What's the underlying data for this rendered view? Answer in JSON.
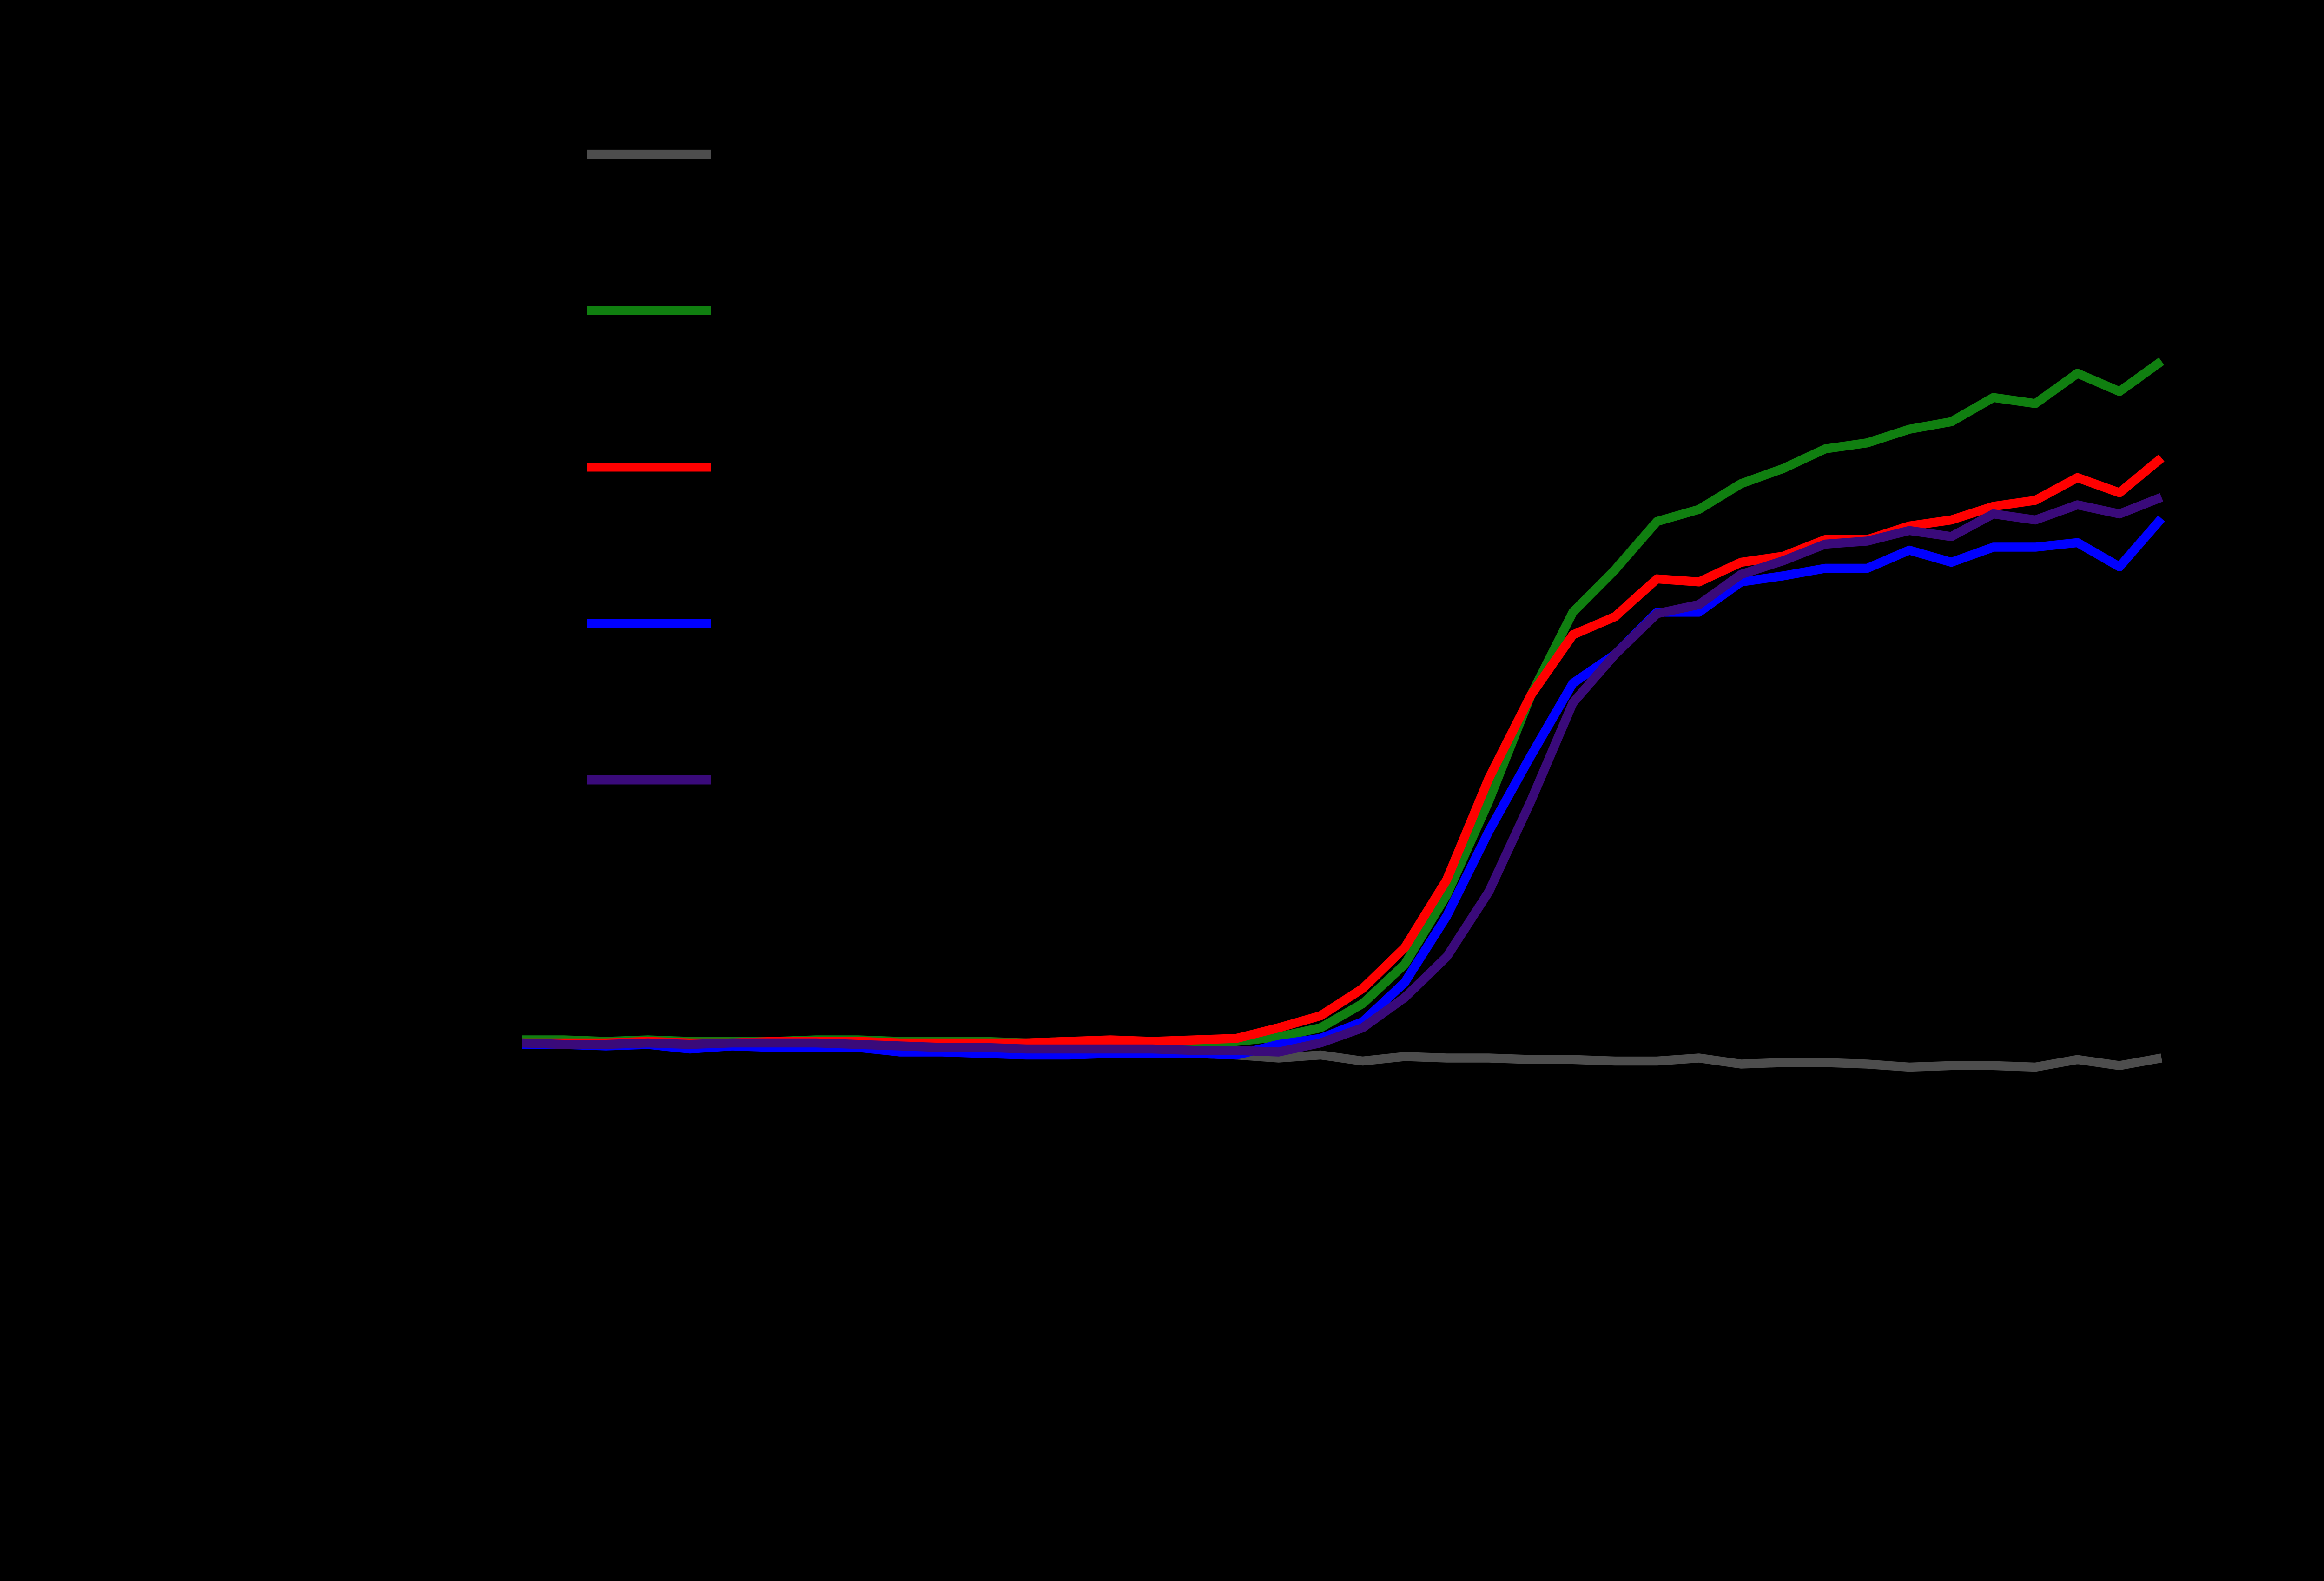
{
  "chart_data": {
    "type": "line",
    "x": [
      1,
      2,
      3,
      4,
      5,
      6,
      7,
      8,
      9,
      10,
      11,
      12,
      13,
      14,
      15,
      16,
      17,
      18,
      19,
      20,
      21,
      22,
      23,
      24,
      25,
      26,
      27,
      28,
      29,
      30,
      31,
      32,
      33,
      34,
      35,
      36,
      37,
      38,
      39,
      40
    ],
    "xlim": [
      1,
      40
    ],
    "ylim": [
      -3,
      6.5
    ],
    "background": "#000000",
    "series": [
      {
        "color": "#4d4d4d",
        "values": [
          0,
          0,
          0,
          0,
          -0.01,
          -0.01,
          -0.02,
          -0.02,
          -0.02,
          -0.03,
          -0.04,
          -0.04,
          -0.05,
          -0.05,
          -0.05,
          -0.06,
          -0.07,
          -0.08,
          -0.1,
          -0.08,
          -0.12,
          -0.09,
          -0.1,
          -0.1,
          -0.11,
          -0.11,
          -0.12,
          -0.12,
          -0.1,
          -0.14,
          -0.13,
          -0.13,
          -0.14,
          -0.16,
          -0.15,
          -0.15,
          -0.16,
          -0.11,
          -0.15,
          -0.1
        ]
      },
      {
        "color": "#107f10",
        "values": [
          0.02,
          0.02,
          0.01,
          0.02,
          0.01,
          0.01,
          0.01,
          0.02,
          0.02,
          0.01,
          0.01,
          0.01,
          0.0,
          0.01,
          0.01,
          0.0,
          0.01,
          0.01,
          0.04,
          0.1,
          0.26,
          0.52,
          0.98,
          1.6,
          2.3,
          2.85,
          3.13,
          3.45,
          3.53,
          3.7,
          3.8,
          3.93,
          3.97,
          4.06,
          4.11,
          4.27,
          4.23,
          4.43,
          4.31,
          4.51
        ]
      },
      {
        "color": "#ff0000",
        "values": [
          0.0,
          0.0,
          0.0,
          0.01,
          0.0,
          0.0,
          0.01,
          0.01,
          0.01,
          0.0,
          0.0,
          0.0,
          0.0,
          0.01,
          0.02,
          0.01,
          0.02,
          0.03,
          0.1,
          0.18,
          0.36,
          0.63,
          1.08,
          1.75,
          2.3,
          2.7,
          2.82,
          3.07,
          3.05,
          3.18,
          3.22,
          3.33,
          3.33,
          3.42,
          3.46,
          3.55,
          3.59,
          3.74,
          3.64,
          3.87
        ]
      },
      {
        "color": "#0000ff",
        "values": [
          -0.01,
          -0.01,
          -0.02,
          -0.01,
          -0.04,
          -0.02,
          -0.03,
          -0.03,
          -0.03,
          -0.06,
          -0.06,
          -0.07,
          -0.08,
          -0.08,
          -0.07,
          -0.07,
          -0.07,
          -0.08,
          -0.01,
          0.03,
          0.14,
          0.4,
          0.84,
          1.4,
          1.9,
          2.38,
          2.57,
          2.85,
          2.85,
          3.05,
          3.09,
          3.14,
          3.14,
          3.26,
          3.18,
          3.28,
          3.28,
          3.31,
          3.15,
          3.47
        ]
      },
      {
        "color": "#3a0a7a",
        "values": [
          0.0,
          -0.01,
          -0.01,
          0.0,
          -0.01,
          0.0,
          0.0,
          0.0,
          -0.01,
          -0.02,
          -0.03,
          -0.03,
          -0.04,
          -0.04,
          -0.04,
          -0.04,
          -0.05,
          -0.05,
          -0.06,
          0.0,
          0.1,
          0.3,
          0.57,
          1.0,
          1.6,
          2.25,
          2.57,
          2.84,
          2.9,
          3.1,
          3.19,
          3.3,
          3.32,
          3.39,
          3.35,
          3.5,
          3.46,
          3.56,
          3.5,
          3.61
        ]
      }
    ]
  }
}
